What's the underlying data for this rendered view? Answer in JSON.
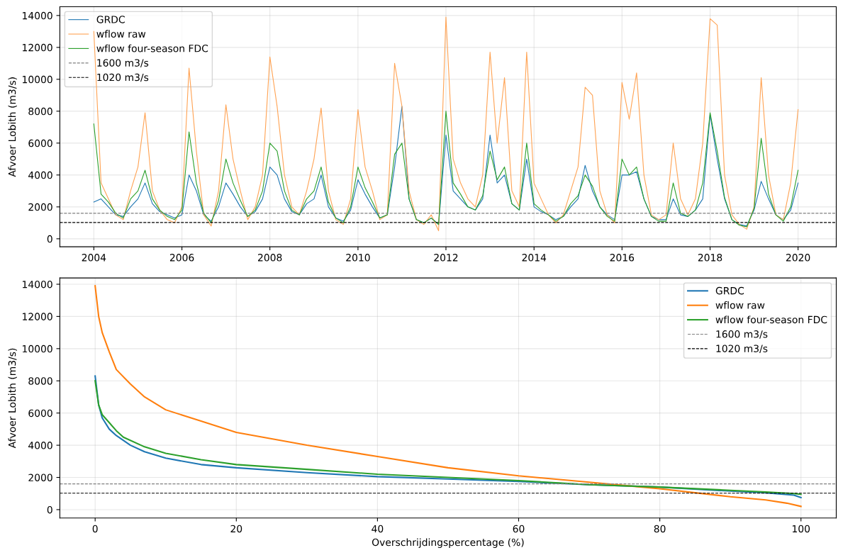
{
  "chart_data": [
    {
      "type": "line",
      "ylabel": "Afvoer Lobith (m3/s)",
      "x": [
        "2004-01",
        "2004-03",
        "2004-05",
        "2004-07",
        "2004-09",
        "2004-11",
        "2005-01",
        "2005-03",
        "2005-05",
        "2005-07",
        "2005-09",
        "2005-11",
        "2006-01",
        "2006-03",
        "2006-05",
        "2006-07",
        "2006-09",
        "2006-11",
        "2007-01",
        "2007-03",
        "2007-05",
        "2007-07",
        "2007-09",
        "2007-11",
        "2008-01",
        "2008-03",
        "2008-05",
        "2008-07",
        "2008-09",
        "2008-11",
        "2009-01",
        "2009-03",
        "2009-05",
        "2009-07",
        "2009-09",
        "2009-11",
        "2010-01",
        "2010-03",
        "2010-05",
        "2010-07",
        "2010-09",
        "2010-11",
        "2011-01",
        "2011-03",
        "2011-05",
        "2011-07",
        "2011-09",
        "2011-11",
        "2012-01",
        "2012-03",
        "2012-05",
        "2012-07",
        "2012-09",
        "2012-11",
        "2013-01",
        "2013-03",
        "2013-05",
        "2013-07",
        "2013-09",
        "2013-11",
        "2014-01",
        "2014-03",
        "2014-05",
        "2014-07",
        "2014-09",
        "2014-11",
        "2015-01",
        "2015-03",
        "2015-05",
        "2015-07",
        "2015-09",
        "2015-11",
        "2016-01",
        "2016-03",
        "2016-05",
        "2016-07",
        "2016-09",
        "2016-11",
        "2017-01",
        "2017-03",
        "2017-05",
        "2017-07",
        "2017-09",
        "2017-11",
        "2018-01",
        "2018-03",
        "2018-05",
        "2018-07",
        "2018-09",
        "2018-11",
        "2019-01",
        "2019-03",
        "2019-05",
        "2019-07",
        "2019-09",
        "2019-11",
        "2020-01"
      ],
      "series": [
        {
          "name": "GRDC",
          "color": "#1f77b4",
          "values": [
            2300,
            2500,
            2000,
            1500,
            1400,
            2000,
            2500,
            3500,
            2200,
            1700,
            1500,
            1300,
            1500,
            4000,
            3000,
            1500,
            1100,
            2000,
            3500,
            2800,
            2000,
            1400,
            1700,
            2500,
            4500,
            4000,
            2500,
            1700,
            1500,
            2200,
            2500,
            4000,
            2000,
            1300,
            1100,
            1800,
            3700,
            2800,
            2000,
            1300,
            1500,
            4500,
            8300,
            2500,
            1200,
            1000,
            1300,
            900,
            6500,
            3000,
            2500,
            2000,
            1800,
            2500,
            6500,
            3500,
            4000,
            2200,
            1800,
            5000,
            2000,
            1700,
            1500,
            1200,
            1400,
            2000,
            2500,
            4600,
            3000,
            2000,
            1500,
            1200,
            4000,
            4000,
            4200,
            2500,
            1400,
            1200,
            1200,
            2500,
            1500,
            1400,
            1800,
            2500,
            7800,
            5000,
            2500,
            1200,
            900,
            800,
            1800,
            3600,
            2500,
            1500,
            1200,
            1800,
            3500
          ]
        },
        {
          "name": "wflow raw",
          "color": "#ffa354",
          "values": [
            13000,
            3500,
            2500,
            1500,
            1200,
            3000,
            4500,
            7900,
            3000,
            1800,
            1200,
            1000,
            2000,
            10700,
            5500,
            1500,
            800,
            3000,
            8400,
            5000,
            3000,
            1200,
            2000,
            4000,
            11400,
            8300,
            4000,
            2000,
            1500,
            3000,
            5000,
            8200,
            3000,
            1200,
            900,
            2500,
            8100,
            4500,
            3000,
            1200,
            1500,
            11000,
            8300,
            3000,
            1200,
            900,
            1500,
            500,
            13900,
            5000,
            3500,
            2500,
            2000,
            4000,
            11700,
            6000,
            10100,
            3000,
            2000,
            11700,
            3500,
            2500,
            1500,
            1000,
            1500,
            3000,
            4500,
            9500,
            9000,
            3000,
            1500,
            1000,
            9800,
            7500,
            10400,
            4000,
            1500,
            1200,
            1500,
            6000,
            2500,
            1500,
            2500,
            6000,
            13800,
            13400,
            4000,
            1500,
            900,
            600,
            2000,
            10100,
            4000,
            1500,
            1200,
            3500,
            8100
          ]
        },
        {
          "name": "wflow four-season FDC",
          "color": "#2ca02c",
          "values": [
            7200,
            2800,
            2300,
            1600,
            1300,
            2500,
            3000,
            4300,
            2500,
            1800,
            1400,
            1200,
            1800,
            6700,
            3500,
            1600,
            1000,
            2400,
            5000,
            3500,
            2400,
            1400,
            1800,
            3000,
            6000,
            5500,
            3000,
            1800,
            1500,
            2500,
            3000,
            4500,
            2300,
            1300,
            1000,
            2000,
            4500,
            3200,
            2300,
            1300,
            1500,
            5300,
            6000,
            2500,
            1200,
            1000,
            1300,
            900,
            8000,
            3500,
            2800,
            2000,
            1800,
            2700,
            5500,
            3700,
            4500,
            2200,
            1800,
            6000,
            2200,
            1800,
            1500,
            1100,
            1400,
            2200,
            2700,
            4000,
            3300,
            2000,
            1400,
            1100,
            5000,
            4000,
            4500,
            2500,
            1400,
            1100,
            1100,
            3500,
            1600,
            1400,
            1800,
            3500,
            7900,
            5500,
            2600,
            1200,
            850,
            750,
            1900,
            6300,
            2800,
            1500,
            1100,
            2000,
            4300
          ]
        }
      ],
      "ref_lines": [
        {
          "axis": "y",
          "value": 1600,
          "label": "1600 m3/s",
          "color": "#808080",
          "line_style": "dashed"
        },
        {
          "axis": "y",
          "value": 1020,
          "label": "1020 m3/s",
          "color": "#000000",
          "line_style": "dashed"
        }
      ],
      "xlim": [
        "2003-03-25",
        "2020-11-13"
      ],
      "xticks": [
        "2004",
        "2006",
        "2008",
        "2010",
        "2012",
        "2014",
        "2016",
        "2018",
        "2020"
      ],
      "ylim": [
        -500,
        14550
      ],
      "yticks": [
        0,
        2000,
        4000,
        6000,
        8000,
        10000,
        12000,
        14000
      ],
      "grid": true,
      "legend": "top left",
      "line_style": "solid",
      "marker": "none"
    },
    {
      "type": "line",
      "ylabel": "Afvoer Lobith (m3/s)",
      "xlabel": "Overschrijdingspercentage (%)",
      "series": [
        {
          "name": "GRDC",
          "color": "#1f77b4",
          "x": [
            0,
            0.5,
            1,
            2,
            3,
            5,
            7,
            10,
            15,
            20,
            30,
            40,
            50,
            60,
            70,
            80,
            90,
            95,
            99,
            100
          ],
          "values": [
            8300,
            6500,
            5700,
            5000,
            4600,
            4000,
            3600,
            3200,
            2800,
            2600,
            2300,
            2050,
            1900,
            1750,
            1550,
            1400,
            1150,
            1050,
            900,
            750
          ]
        },
        {
          "name": "wflow raw",
          "color": "#ff7f0e",
          "x": [
            0,
            0.5,
            1,
            2,
            3,
            5,
            7,
            10,
            15,
            20,
            30,
            40,
            50,
            60,
            70,
            75,
            80,
            85,
            90,
            95,
            98,
            100
          ],
          "values": [
            13900,
            12000,
            11000,
            9800,
            8700,
            7800,
            7000,
            6200,
            5500,
            4800,
            4000,
            3300,
            2600,
            2100,
            1700,
            1500,
            1300,
            1050,
            800,
            600,
            400,
            200
          ]
        },
        {
          "name": "wflow four-season FDC",
          "color": "#2ca02c",
          "x": [
            0,
            0.5,
            1,
            2,
            3,
            4,
            7,
            10,
            15,
            20,
            30,
            40,
            50,
            60,
            70,
            80,
            90,
            95,
            99,
            100
          ],
          "values": [
            8000,
            6500,
            5900,
            5400,
            4900,
            4500,
            3900,
            3500,
            3100,
            2800,
            2500,
            2200,
            2000,
            1800,
            1550,
            1400,
            1200,
            1100,
            1000,
            950
          ]
        }
      ],
      "ref_lines": [
        {
          "axis": "y",
          "value": 1600,
          "label": "1600 m3/s",
          "color": "#808080",
          "line_style": "dashed"
        },
        {
          "axis": "y",
          "value": 1020,
          "label": "1020 m3/s",
          "color": "#000000",
          "line_style": "dashed"
        }
      ],
      "xlim": [
        -5,
        105
      ],
      "xticks": [
        0,
        20,
        40,
        60,
        80,
        100
      ],
      "ylim": [
        -520,
        14390
      ],
      "yticks": [
        0,
        2000,
        4000,
        6000,
        8000,
        10000,
        12000,
        14000
      ],
      "grid": true,
      "legend": "top right",
      "line_style": "solid",
      "marker": "none"
    }
  ]
}
